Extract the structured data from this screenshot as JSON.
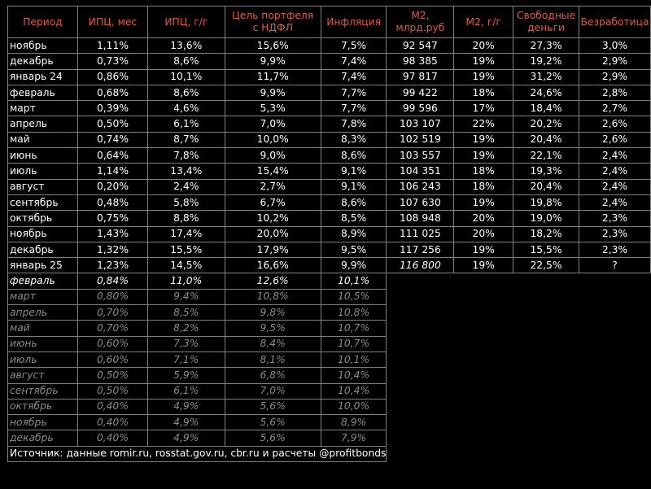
{
  "header": {
    "period": "Период",
    "cpi_month": "ИПЦ, мес",
    "cpi_yoy": "ИПЦ, г/г",
    "portfolio_target": [
      "Цель портфеля",
      "с НДФЛ"
    ],
    "inflation": "Инфляция",
    "m2": [
      "М2,",
      "млрд.руб"
    ],
    "m2_yoy": "М2, г/г",
    "free_money": [
      "Свободные",
      "деньги"
    ],
    "unemployment": "Безработица"
  },
  "actual_rows": [
    {
      "period": "ноябрь",
      "cpi_month": "1,11%",
      "cpi_yoy": "13,6%",
      "target": "15,6%",
      "inflation": "7,5%",
      "m2": "92 547",
      "m2_yoy": "20%",
      "free_money": "27,3%",
      "unemployment": "3,0%"
    },
    {
      "period": "декабрь",
      "cpi_month": "0,73%",
      "cpi_yoy": "8,6%",
      "target": "9,9%",
      "inflation": "7,4%",
      "m2": "98 385",
      "m2_yoy": "19%",
      "free_money": "19,2%",
      "unemployment": "2,9%"
    },
    {
      "period": "январь 24",
      "cpi_month": "0,86%",
      "cpi_yoy": "10,1%",
      "target": "11,7%",
      "inflation": "7,4%",
      "m2": "97 817",
      "m2_yoy": "19%",
      "free_money": "31,2%",
      "unemployment": "2,9%"
    },
    {
      "period": "февраль",
      "cpi_month": "0,68%",
      "cpi_yoy": "8,6%",
      "target": "9,9%",
      "inflation": "7,7%",
      "m2": "99 422",
      "m2_yoy": "18%",
      "free_money": "24,6%",
      "unemployment": "2,8%"
    },
    {
      "period": "март",
      "cpi_month": "0,39%",
      "cpi_yoy": "4,6%",
      "target": "5,3%",
      "inflation": "7,7%",
      "m2": "99 596",
      "m2_yoy": "17%",
      "free_money": "18,4%",
      "unemployment": "2,7%"
    },
    {
      "period": "апрель",
      "cpi_month": "0,50%",
      "cpi_yoy": "6,1%",
      "target": "7,0%",
      "inflation": "7,8%",
      "m2": "103 107",
      "m2_yoy": "22%",
      "free_money": "20,2%",
      "unemployment": "2,6%"
    },
    {
      "period": "май",
      "cpi_month": "0,74%",
      "cpi_yoy": "8,7%",
      "target": "10,0%",
      "inflation": "8,3%",
      "m2": "102 519",
      "m2_yoy": "19%",
      "free_money": "20,4%",
      "unemployment": "2,6%"
    },
    {
      "period": "июнь",
      "cpi_month": "0,64%",
      "cpi_yoy": "7,8%",
      "target": "9,0%",
      "inflation": "8,6%",
      "m2": "103 557",
      "m2_yoy": "19%",
      "free_money": "22,1%",
      "unemployment": "2,4%"
    },
    {
      "period": "июль",
      "cpi_month": "1,14%",
      "cpi_yoy": "13,4%",
      "target": "15,4%",
      "inflation": "9,1%",
      "m2": "104 351",
      "m2_yoy": "18%",
      "free_money": "19,3%",
      "unemployment": "2,4%"
    },
    {
      "period": "август",
      "cpi_month": "0,20%",
      "cpi_yoy": "2,4%",
      "target": "2,7%",
      "inflation": "9,1%",
      "m2": "106 243",
      "m2_yoy": "18%",
      "free_money": "20,4%",
      "unemployment": "2,4%"
    },
    {
      "period": "сентябрь",
      "cpi_month": "0,48%",
      "cpi_yoy": "5,8%",
      "target": "6,7%",
      "inflation": "8,6%",
      "m2": "107 630",
      "m2_yoy": "19%",
      "free_money": "19,8%",
      "unemployment": "2,4%"
    },
    {
      "period": "октябрь",
      "cpi_month": "0,75%",
      "cpi_yoy": "8,8%",
      "target": "10,2%",
      "inflation": "8,5%",
      "m2": "108 948",
      "m2_yoy": "20%",
      "free_money": "19,0%",
      "unemployment": "2,3%"
    },
    {
      "period": "ноябрь",
      "cpi_month": "1,43%",
      "cpi_yoy": "17,4%",
      "target": "20,0%",
      "inflation": "8,9%",
      "m2": "111 025",
      "m2_yoy": "20%",
      "free_money": "18,2%",
      "unemployment": "2,3%"
    },
    {
      "period": "декабрь",
      "cpi_month": "1,32%",
      "cpi_yoy": "15,5%",
      "target": "17,9%",
      "inflation": "9,5%",
      "m2": "117 256",
      "m2_yoy": "19%",
      "free_money": "15,5%",
      "unemployment": "2,3%"
    },
    {
      "period": "январь 25",
      "cpi_month": "1,23%",
      "cpi_yoy": "14,5%",
      "target": "16,6%",
      "inflation": "9,9%",
      "m2": "116 800",
      "m2_italic": true,
      "m2_yoy": "19%",
      "free_money": "22,5%",
      "unemployment": "?"
    }
  ],
  "forecast_current": {
    "period": "февраль",
    "cpi_month": "0,84%",
    "cpi_yoy": "11,0%",
    "target": "12,6%",
    "inflation": "10,1%"
  },
  "forecast_rows": [
    {
      "period": "март",
      "cpi_month": "0,80%",
      "cpi_yoy": "9,4%",
      "target": "10,8%",
      "inflation": "10,5%"
    },
    {
      "period": "апрель",
      "cpi_month": "0,70%",
      "cpi_yoy": "8,5%",
      "target": "9,8%",
      "inflation": "10,8%"
    },
    {
      "period": "май",
      "cpi_month": "0,70%",
      "cpi_yoy": "8,2%",
      "target": "9,5%",
      "inflation": "10,7%"
    },
    {
      "period": "июнь",
      "cpi_month": "0,60%",
      "cpi_yoy": "7,3%",
      "target": "8,4%",
      "inflation": "10,7%"
    },
    {
      "period": "июль",
      "cpi_month": "0,60%",
      "cpi_yoy": "7,1%",
      "target": "8,1%",
      "inflation": "10,1%"
    },
    {
      "period": "август",
      "cpi_month": "0,50%",
      "cpi_yoy": "5,9%",
      "target": "6,8%",
      "inflation": "10,4%"
    },
    {
      "period": "сентябрь",
      "cpi_month": "0,50%",
      "cpi_yoy": "6,1%",
      "target": "7,0%",
      "inflation": "10,4%"
    },
    {
      "period": "октябрь",
      "cpi_month": "0,40%",
      "cpi_yoy": "4,9%",
      "target": "5,6%",
      "inflation": "10,0%"
    },
    {
      "period": "ноябрь",
      "cpi_month": "0,40%",
      "cpi_yoy": "4,9%",
      "target": "5,6%",
      "inflation": "8,9%"
    },
    {
      "period": "декабрь",
      "cpi_month": "0,40%",
      "cpi_yoy": "4,9%",
      "target": "5,6%",
      "inflation": "7,9%"
    }
  ],
  "source": "Источник: данные romir.ru, rosstat.gov.ru, cbr.ru и расчеты @profitbonds",
  "colors": {
    "header_text": "#e05a47",
    "body_text": "#ffffff",
    "faded_text": "#8c8c8c",
    "background": "#000000",
    "grid": "#808080"
  }
}
